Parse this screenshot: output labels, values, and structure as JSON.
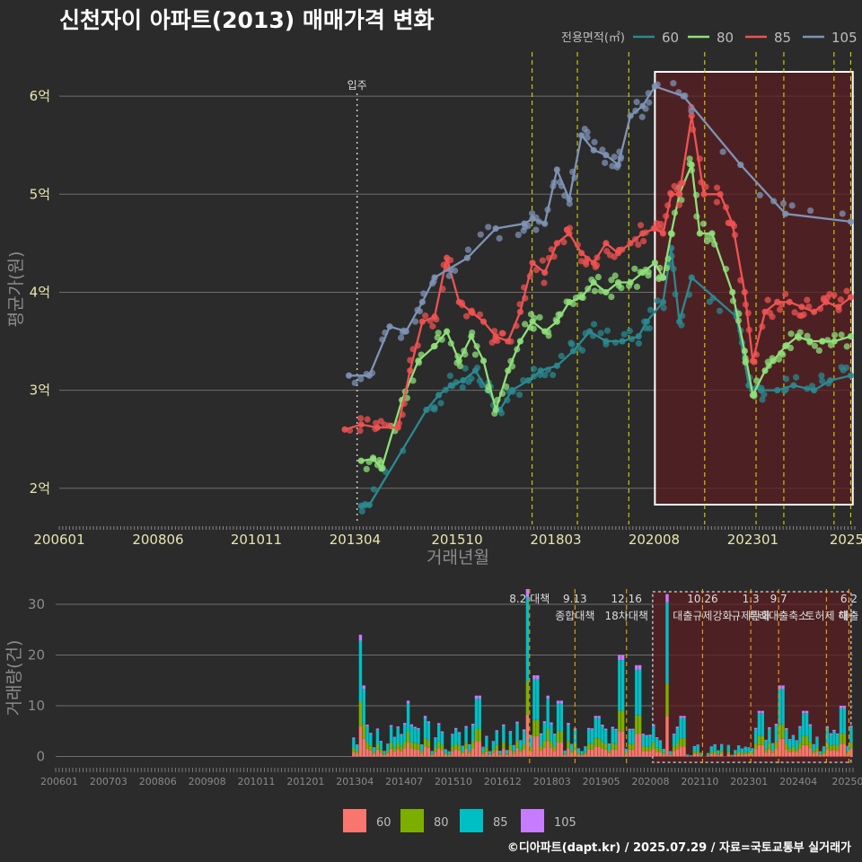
{
  "title": "신천자이 아파트(2013) 매매가격 변화",
  "footer": "©디아파트(dapt.kr) / 2025.07.29 / 자료=국토교통부 실거래가",
  "colors": {
    "background": "#2b2b2b",
    "grid": "#6e6e6e",
    "vline": "#d4d400",
    "vline_lower": "#f0a000",
    "highlight_fill": "#5a1f22",
    "s60": "#2a8a90",
    "s80": "#8fe07a",
    "s85": "#f05252",
    "s105": "#7f93b5",
    "b60": "#f8766d",
    "b80": "#7cae00",
    "b85": "#00bfc4",
    "b105": "#c77cff"
  },
  "chart_data": [
    {
      "type": "line",
      "title": "신천자이 아파트(2013) 매매가격 변화",
      "xlabel": "거래년월",
      "ylabel": "평균가(원)",
      "x_ticks": [
        "200601",
        "200806",
        "201011",
        "201304",
        "201510",
        "201803",
        "202008",
        "202301",
        "2025"
      ],
      "y_ticks": [
        "2억",
        "3억",
        "4억",
        "5억",
        "6억"
      ],
      "ylim": [
        1.65,
        6.45
      ],
      "xlim": [
        2006.0,
        2025.5
      ],
      "legend_title": "전용면적(㎡)",
      "legend_position": "top-right",
      "movein_label": "입주",
      "movein_x": 2013.3,
      "highlight": [
        2020.6,
        2025.45
      ],
      "policy_lines": [
        2017.59,
        2018.7,
        2019.96,
        2021.82,
        2023.08,
        2023.76,
        2024.99,
        2025.4
      ],
      "series": [
        {
          "name": "60",
          "points": [
            [
              2013.4,
              1.82
            ],
            [
              2013.6,
              1.83
            ],
            [
              2015.0,
              2.8
            ],
            [
              2015.3,
              2.95
            ],
            [
              2015.6,
              3.05
            ],
            [
              2015.9,
              3.1
            ],
            [
              2016.2,
              3.2
            ],
            [
              2016.5,
              3.0
            ],
            [
              2016.8,
              2.8
            ],
            [
              2017.1,
              3.0
            ],
            [
              2017.5,
              3.1
            ],
            [
              2017.8,
              3.2
            ],
            [
              2018.2,
              3.25
            ],
            [
              2018.6,
              3.4
            ],
            [
              2019.0,
              3.6
            ],
            [
              2019.4,
              3.5
            ],
            [
              2019.8,
              3.5
            ],
            [
              2020.2,
              3.55
            ],
            [
              2020.4,
              3.7
            ],
            [
              2020.8,
              3.9
            ],
            [
              2021.0,
              4.45
            ],
            [
              2021.2,
              3.7
            ],
            [
              2021.5,
              4.15
            ],
            [
              2022.6,
              3.75
            ],
            [
              2022.9,
              3.05
            ],
            [
              2023.2,
              3.0
            ],
            [
              2023.6,
              3.0
            ],
            [
              2024.0,
              3.05
            ],
            [
              2024.5,
              3.0
            ],
            [
              2024.9,
              3.1
            ],
            [
              2025.4,
              3.15
            ]
          ]
        },
        {
          "name": "80",
          "points": [
            [
              2013.4,
              2.28
            ],
            [
              2013.7,
              2.3
            ],
            [
              2013.9,
              2.2
            ],
            [
              2014.4,
              2.9
            ],
            [
              2014.8,
              3.3
            ],
            [
              2015.2,
              3.45
            ],
            [
              2015.5,
              3.6
            ],
            [
              2015.8,
              3.3
            ],
            [
              2016.1,
              3.55
            ],
            [
              2016.4,
              3.3
            ],
            [
              2016.7,
              2.8
            ],
            [
              2017.0,
              3.2
            ],
            [
              2017.3,
              3.5
            ],
            [
              2017.6,
              3.7
            ],
            [
              2017.9,
              3.6
            ],
            [
              2018.2,
              3.7
            ],
            [
              2018.5,
              3.9
            ],
            [
              2018.8,
              3.95
            ],
            [
              2019.1,
              4.1
            ],
            [
              2019.4,
              4.0
            ],
            [
              2019.7,
              4.1
            ],
            [
              2020.0,
              4.1
            ],
            [
              2020.3,
              4.2
            ],
            [
              2020.6,
              4.3
            ],
            [
              2020.8,
              4.15
            ],
            [
              2021.0,
              4.6
            ],
            [
              2021.2,
              5.0
            ],
            [
              2021.5,
              5.3
            ],
            [
              2021.7,
              4.6
            ],
            [
              2022.0,
              4.6
            ],
            [
              2022.5,
              4.0
            ],
            [
              2022.8,
              3.4
            ],
            [
              2023.0,
              2.95
            ],
            [
              2023.3,
              3.2
            ],
            [
              2023.5,
              3.3
            ],
            [
              2023.8,
              3.45
            ],
            [
              2024.1,
              3.55
            ],
            [
              2024.4,
              3.5
            ],
            [
              2024.7,
              3.5
            ],
            [
              2025.0,
              3.5
            ],
            [
              2025.4,
              3.55
            ]
          ]
        },
        {
          "name": "85",
          "points": [
            [
              2013.0,
              2.6
            ],
            [
              2013.4,
              2.65
            ],
            [
              2013.8,
              2.62
            ],
            [
              2014.3,
              2.62
            ],
            [
              2014.6,
              3.2
            ],
            [
              2014.9,
              3.7
            ],
            [
              2015.2,
              3.75
            ],
            [
              2015.5,
              4.35
            ],
            [
              2015.8,
              3.9
            ],
            [
              2016.1,
              3.8
            ],
            [
              2016.4,
              3.7
            ],
            [
              2016.7,
              3.55
            ],
            [
              2017.0,
              3.5
            ],
            [
              2017.3,
              3.8
            ],
            [
              2017.6,
              4.3
            ],
            [
              2017.9,
              4.2
            ],
            [
              2018.2,
              4.5
            ],
            [
              2018.5,
              4.6
            ],
            [
              2018.8,
              4.4
            ],
            [
              2019.1,
              4.3
            ],
            [
              2019.4,
              4.5
            ],
            [
              2019.7,
              4.4
            ],
            [
              2020.0,
              4.5
            ],
            [
              2020.3,
              4.6
            ],
            [
              2020.6,
              4.65
            ],
            [
              2020.8,
              4.6
            ],
            [
              2021.0,
              5.0
            ],
            [
              2021.2,
              5.0
            ],
            [
              2021.5,
              5.8
            ],
            [
              2021.8,
              5.0
            ],
            [
              2022.2,
              5.0
            ],
            [
              2022.5,
              4.7
            ],
            [
              2022.8,
              4.0
            ],
            [
              2023.0,
              3.3
            ],
            [
              2023.3,
              3.8
            ],
            [
              2023.6,
              3.9
            ],
            [
              2023.9,
              3.9
            ],
            [
              2024.2,
              3.85
            ],
            [
              2024.5,
              3.8
            ],
            [
              2024.8,
              3.9
            ],
            [
              2025.1,
              3.85
            ],
            [
              2025.4,
              3.95
            ]
          ]
        },
        {
          "name": "105",
          "points": [
            [
              2013.1,
              3.15
            ],
            [
              2013.6,
              3.15
            ],
            [
              2014.1,
              3.65
            ],
            [
              2014.5,
              3.6
            ],
            [
              2014.9,
              3.9
            ],
            [
              2015.2,
              4.15
            ],
            [
              2016.0,
              4.35
            ],
            [
              2016.7,
              4.65
            ],
            [
              2017.4,
              4.7
            ],
            [
              2017.6,
              4.75
            ],
            [
              2017.9,
              4.7
            ],
            [
              2018.2,
              5.25
            ],
            [
              2018.5,
              4.95
            ],
            [
              2018.8,
              5.6
            ],
            [
              2019.1,
              5.45
            ],
            [
              2019.4,
              5.4
            ],
            [
              2019.7,
              5.3
            ],
            [
              2020.0,
              5.8
            ],
            [
              2020.3,
              5.9
            ],
            [
              2020.6,
              6.1
            ],
            [
              2021.3,
              6.0
            ],
            [
              2022.7,
              5.3
            ],
            [
              2023.8,
              4.8
            ],
            [
              2025.4,
              4.72
            ]
          ]
        }
      ]
    },
    {
      "type": "bar",
      "ylabel": "거래량(건)",
      "ylim": [
        -1.5,
        33
      ],
      "y_ticks": [
        "0",
        "10",
        "20",
        "30"
      ],
      "x_ticks": [
        "200601",
        "200703",
        "200806",
        "200908",
        "201011",
        "201201",
        "201304",
        "201407",
        "201510",
        "201612",
        "201803",
        "201905",
        "202008",
        "202110",
        "202301",
        "202404",
        "20250"
      ],
      "legend": [
        "60",
        "80",
        "85",
        "105"
      ],
      "legend_position": "bottom",
      "highlight": [
        2020.6,
        2025.45
      ],
      "annotations": [
        {
          "date": "8.2 대책",
          "line2": "",
          "x": 2017.59
        },
        {
          "date": "9.13",
          "line2": "종합대책",
          "x": 2018.7
        },
        {
          "date": "12.16",
          "line2": "18차대책",
          "x": 2019.96
        },
        {
          "date": "10.26",
          "line2": "대출규제강화",
          "x": 2021.82
        },
        {
          "date": "1.3",
          "line2": "규제완화",
          "x": 2023.0
        },
        {
          "date": "9.7",
          "line2": "특례대출축소",
          "x": 2023.68
        },
        {
          "date": "",
          "line2": "토허제 해",
          "x": 2024.85
        },
        {
          "date": "6.2",
          "line2": "대출",
          "x": 2025.4
        }
      ],
      "volume_peaks": [
        [
          2013.4,
          24
        ],
        [
          2013.5,
          14
        ],
        [
          2014.6,
          11
        ],
        [
          2015.0,
          8
        ],
        [
          2016.0,
          6
        ],
        [
          2016.3,
          12
        ],
        [
          2017.5,
          33
        ],
        [
          2017.7,
          16
        ],
        [
          2018.0,
          12
        ],
        [
          2018.3,
          11
        ],
        [
          2019.2,
          8
        ],
        [
          2019.8,
          20
        ],
        [
          2020.2,
          18
        ],
        [
          2020.9,
          32
        ],
        [
          2021.3,
          8
        ],
        [
          2022.0,
          2
        ],
        [
          2023.2,
          9
        ],
        [
          2023.7,
          14
        ],
        [
          2024.3,
          9
        ],
        [
          2025.2,
          10
        ]
      ]
    }
  ]
}
